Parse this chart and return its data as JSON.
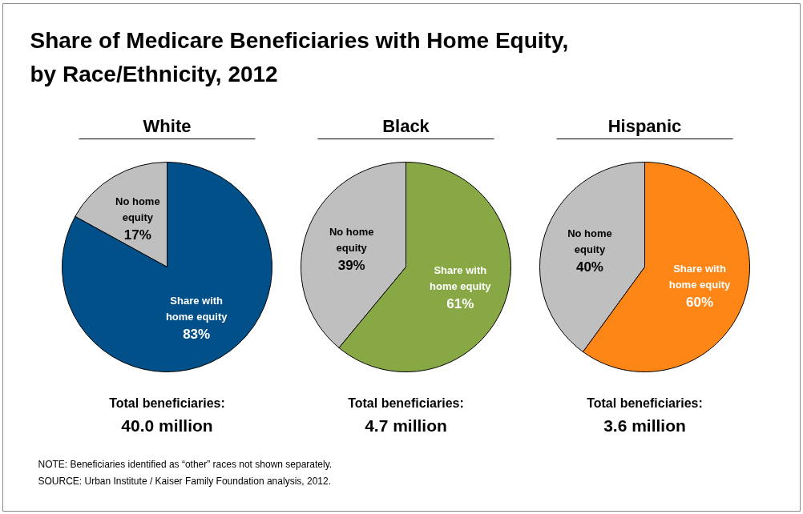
{
  "chart_data": [
    {
      "type": "other",
      "title": "Share of Medicare Beneficiaries with Home Equity,\nby Race/Ethnicity, 2012",
      "annotations": [
        "NOTE: Beneficiaries identified as “other” races not shown separately.",
        "SOURCE: Urban Institute / Kaiser Family Foundation analysis, 2012."
      ]
    },
    {
      "type": "pie",
      "title": "White",
      "categories": [
        "No home equity",
        "Share with home equity"
      ],
      "values": [
        17,
        83
      ],
      "colors": [
        "#bfbfbf",
        "#01508a"
      ],
      "value_labels": [
        "17%",
        "83%"
      ],
      "annotations": [
        "Total beneficiaries:",
        "40.0 million"
      ]
    },
    {
      "type": "pie",
      "title": "Black",
      "categories": [
        "No home equity",
        "Share with home equity"
      ],
      "values": [
        39,
        61
      ],
      "colors": [
        "#bfbfbf",
        "#88a845"
      ],
      "value_labels": [
        "39%",
        "61%"
      ],
      "annotations": [
        "Total beneficiaries:",
        "4.7 million"
      ]
    },
    {
      "type": "pie",
      "title": "Hispanic",
      "categories": [
        "No home equity",
        "Share with home equity"
      ],
      "values": [
        40,
        60
      ],
      "colors": [
        "#bfbfbf",
        "#fe8617"
      ],
      "value_labels": [
        "40%",
        "60%"
      ],
      "annotations": [
        "Total beneficiaries:",
        "3.6 million"
      ]
    }
  ]
}
